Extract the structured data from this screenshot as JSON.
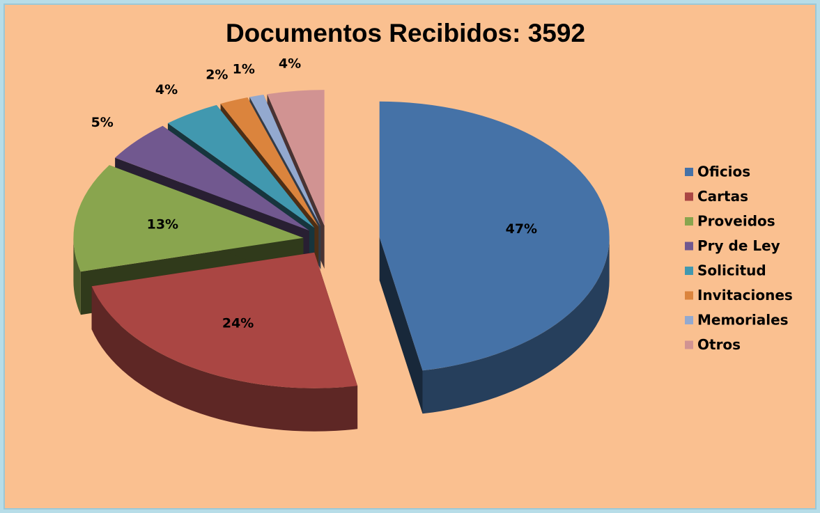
{
  "chart_data": {
    "type": "pie",
    "title": "Documentos Recibidos: 3592",
    "categories": [
      "Oficios",
      "Cartas",
      "Proveidos",
      "Pry de Ley",
      "Solicitud",
      "Invitaciones",
      "Memoriales",
      "Otros"
    ],
    "values": [
      47,
      24,
      13,
      5,
      4,
      2,
      1,
      4
    ],
    "value_labels": [
      "47%",
      "24%",
      "13%",
      "5%",
      "4%",
      "2%",
      "1%",
      "4%"
    ],
    "colors": [
      "#4572a7",
      "#aa4643",
      "#89a54e",
      "#71588f",
      "#4198af",
      "#db843d",
      "#93a9cf",
      "#d19392"
    ],
    "legend": "right"
  }
}
